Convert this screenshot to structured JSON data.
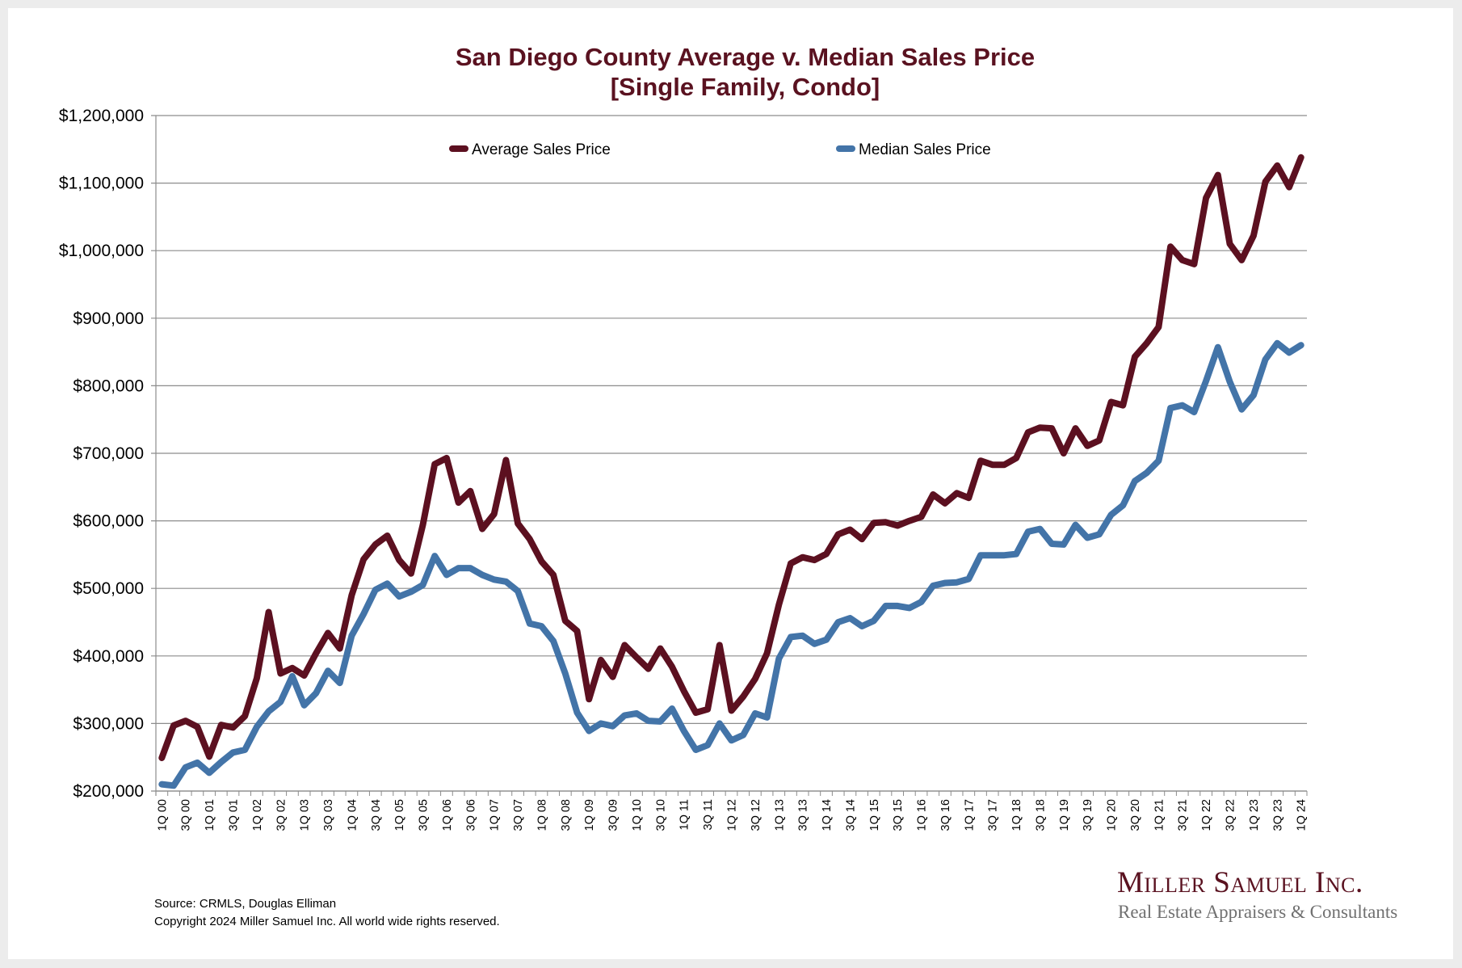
{
  "title": {
    "line1": "San Diego County Average v. Median Sales Price",
    "line2": "[Single Family, Condo]"
  },
  "footer": {
    "source": "Source: CRMLS, Douglas Elliman",
    "copyright": "Copyright 2024 Miller Samuel Inc.  All world wide rights reserved."
  },
  "logo": {
    "name": "Miller Samuel Inc.",
    "tagline": "Real Estate Appraisers & Consultants"
  },
  "colors": {
    "average": "#5c1020",
    "median": "#4374a8",
    "title": "#5a1220",
    "grid": "#8c8c8c"
  },
  "chart_data": {
    "type": "line",
    "title": "San Diego County Average v. Median Sales Price [Single Family, Condo]",
    "xlabel": "",
    "ylabel": "",
    "ylim": [
      200000,
      1200000
    ],
    "yticks": [
      200000,
      300000,
      400000,
      500000,
      600000,
      700000,
      800000,
      900000,
      1000000,
      1100000,
      1200000
    ],
    "ytick_labels": [
      "$200,000",
      "$300,000",
      "$400,000",
      "$500,000",
      "$600,000",
      "$700,000",
      "$800,000",
      "$900,000",
      "$1,000,000",
      "$1,100,000",
      "$1,200,000"
    ],
    "grid": "horizontal",
    "legend_position": "top",
    "x_label_every": 2,
    "categories": [
      "1Q 00",
      "2Q 00",
      "3Q 00",
      "4Q 00",
      "1Q 01",
      "2Q 01",
      "3Q 01",
      "4Q 01",
      "1Q 02",
      "2Q 02",
      "3Q 02",
      "4Q 02",
      "1Q 03",
      "2Q 03",
      "3Q 03",
      "4Q 03",
      "1Q 04",
      "2Q 04",
      "3Q 04",
      "4Q 04",
      "1Q 05",
      "2Q 05",
      "3Q 05",
      "4Q 05",
      "1Q 06",
      "2Q 06",
      "3Q 06",
      "4Q 06",
      "1Q 07",
      "2Q 07",
      "3Q 07",
      "4Q 07",
      "1Q 08",
      "2Q 08",
      "3Q 08",
      "4Q 08",
      "1Q 09",
      "2Q 09",
      "3Q 09",
      "4Q 09",
      "1Q 10",
      "2Q 10",
      "3Q 10",
      "4Q 10",
      "1Q 11",
      "2Q 11",
      "3Q 11",
      "4Q 11",
      "1Q 12",
      "2Q 12",
      "3Q 12",
      "4Q 12",
      "1Q 13",
      "2Q 13",
      "3Q 13",
      "4Q 13",
      "1Q 14",
      "2Q 14",
      "3Q 14",
      "4Q 14",
      "1Q 15",
      "2Q 15",
      "3Q 15",
      "4Q 15",
      "1Q 16",
      "2Q 16",
      "3Q 16",
      "4Q 16",
      "1Q 17",
      "2Q 17",
      "3Q 17",
      "4Q 17",
      "1Q 18",
      "2Q 18",
      "3Q 18",
      "4Q 18",
      "1Q 19",
      "2Q 19",
      "3Q 19",
      "4Q 19",
      "1Q 20",
      "2Q 20",
      "3Q 20",
      "4Q 20",
      "1Q 21",
      "2Q 21",
      "3Q 21",
      "4Q 21",
      "1Q 22",
      "2Q 22",
      "3Q 22",
      "4Q 22",
      "1Q 23",
      "2Q 23",
      "3Q 23",
      "4Q 23",
      "1Q 24"
    ],
    "series": [
      {
        "name": "Average Sales Price",
        "color": "#5c1020",
        "values": [
          249000,
          297000,
          304000,
          295000,
          251000,
          298000,
          294000,
          311000,
          367000,
          465000,
          374000,
          382000,
          371000,
          404000,
          434000,
          411000,
          490000,
          543000,
          565000,
          578000,
          542000,
          522000,
          594000,
          684000,
          693000,
          627000,
          644000,
          588000,
          610000,
          690000,
          596000,
          573000,
          540000,
          520000,
          452000,
          437000,
          336000,
          394000,
          369000,
          416000,
          398000,
          381000,
          411000,
          384000,
          348000,
          316000,
          321000,
          416000,
          319000,
          340000,
          366000,
          404000,
          476000,
          537000,
          546000,
          542000,
          551000,
          580000,
          587000,
          573000,
          597000,
          598000,
          593000,
          600000,
          606000,
          639000,
          626000,
          641000,
          634000,
          689000,
          683000,
          683000,
          693000,
          731000,
          738000,
          737000,
          700000,
          737000,
          711000,
          719000,
          776000,
          771000,
          843000,
          863000,
          887000,
          1006000,
          986000,
          980000,
          1078000,
          1112000,
          1010000,
          986000,
          1022000,
          1102000,
          1126000,
          1094000,
          1138000
        ]
      },
      {
        "name": "Median Sales Price",
        "color": "#4374a8",
        "values": [
          210000,
          208000,
          235000,
          242000,
          227000,
          243000,
          257000,
          261000,
          295000,
          318000,
          332000,
          370000,
          327000,
          345000,
          378000,
          360000,
          430000,
          462000,
          498000,
          507000,
          488000,
          495000,
          505000,
          548000,
          520000,
          530000,
          530000,
          520000,
          513000,
          510000,
          496000,
          448000,
          444000,
          422000,
          374000,
          316000,
          289000,
          300000,
          296000,
          312000,
          315000,
          304000,
          303000,
          322000,
          289000,
          261000,
          268000,
          300000,
          275000,
          283000,
          315000,
          309000,
          396000,
          428000,
          430000,
          418000,
          424000,
          450000,
          456000,
          444000,
          452000,
          474000,
          474000,
          471000,
          480000,
          504000,
          508000,
          509000,
          514000,
          549000,
          549000,
          549000,
          551000,
          584000,
          588000,
          566000,
          565000,
          594000,
          575000,
          580000,
          609000,
          623000,
          659000,
          671000,
          689000,
          767000,
          771000,
          761000,
          807000,
          857000,
          806000,
          765000,
          786000,
          839000,
          863000,
          849000,
          860000
        ]
      }
    ]
  }
}
